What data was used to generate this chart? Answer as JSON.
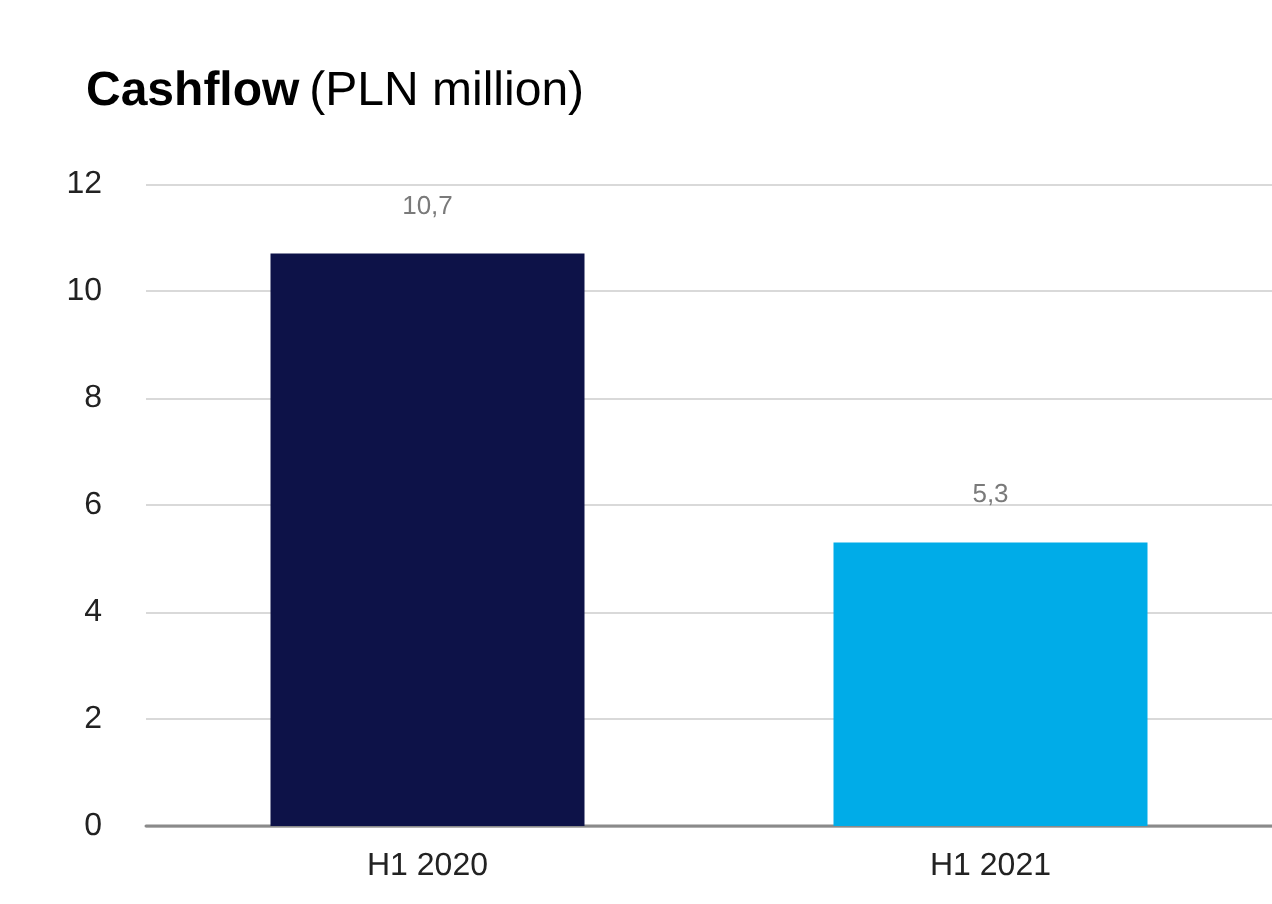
{
  "chart_data": {
    "type": "bar",
    "title": "Cashflow",
    "subtitle": "(PLN million)",
    "categories": [
      "H1 2020",
      "H1 2021"
    ],
    "values": [
      10.7,
      5.3
    ],
    "colors": [
      "#0d1248",
      "#00ace8"
    ],
    "value_labels": [
      "10,7",
      "5,3"
    ],
    "ylim": [
      0,
      12
    ],
    "yticks": [
      0,
      2,
      4,
      6,
      8,
      10,
      12
    ],
    "grid": "y"
  }
}
